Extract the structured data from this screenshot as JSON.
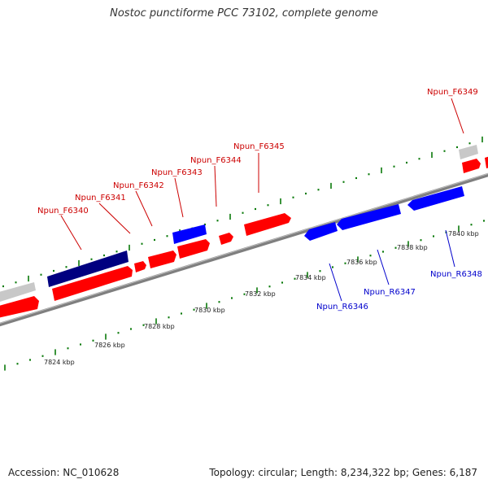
{
  "title": "Nostoc punctiforme PCC 73102, complete genome",
  "footer": {
    "accession": "Accession: NC_010628",
    "summary": "Topology: circular; Length: 8,234,322 bp; Genes: 6,187"
  },
  "colors": {
    "forward_gene": "#ff0000",
    "reverse_gene": "#0000ff",
    "selected_gene": "#000080",
    "other_feature": "#c8c8c8",
    "backbone": "#7f7f7f",
    "ticks": "#0a7a0a",
    "forward_label": "#cc0000",
    "reverse_label": "#0000cc"
  },
  "genes": {
    "forward_labels": [
      "Npun_F6340",
      "Npun_F6341",
      "Npun_F6342",
      "Npun_F6343",
      "Npun_F6344",
      "Npun_F6345",
      "Npun_F6349"
    ],
    "reverse_labels": [
      "Npun_R6346",
      "Npun_R6347",
      "Npun_R6348"
    ]
  },
  "kbp_labels": [
    "7824 kbp",
    "7826 kbp",
    "7828 kbp",
    "7830 kbp",
    "7832 kbp",
    "7834 kbp",
    "7836 kbp",
    "7838 kbp",
    "7840 kbp"
  ]
}
